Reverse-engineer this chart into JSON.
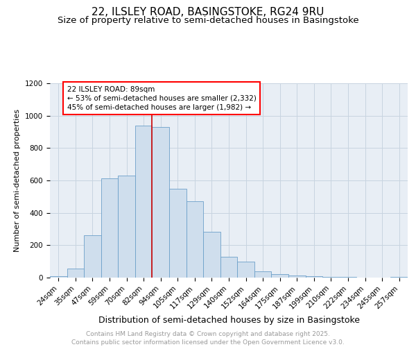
{
  "title1": "22, ILSLEY ROAD, BASINGSTOKE, RG24 9RU",
  "title2": "Size of property relative to semi-detached houses in Basingstoke",
  "xlabel": "Distribution of semi-detached houses by size in Basingstoke",
  "ylabel": "Number of semi-detached properties",
  "bin_labels": [
    "24sqm",
    "35sqm",
    "47sqm",
    "59sqm",
    "70sqm",
    "82sqm",
    "94sqm",
    "105sqm",
    "117sqm",
    "129sqm",
    "140sqm",
    "152sqm",
    "164sqm",
    "175sqm",
    "187sqm",
    "199sqm",
    "210sqm",
    "222sqm",
    "234sqm",
    "245sqm",
    "257sqm"
  ],
  "bar_values": [
    10,
    55,
    260,
    615,
    630,
    940,
    930,
    550,
    470,
    285,
    130,
    100,
    40,
    20,
    15,
    10,
    5,
    3,
    2,
    1,
    5
  ],
  "bar_color": "#cfdeed",
  "bar_edge_color": "#6b9fc9",
  "vline_color": "#cc0000",
  "vline_x_index": 5.5,
  "ylim": [
    0,
    1200
  ],
  "yticks": [
    0,
    200,
    400,
    600,
    800,
    1000,
    1200
  ],
  "grid_color": "#c8d4e0",
  "background_color": "#e8eef5",
  "ann_label": "22 ILSLEY ROAD: 89sqm",
  "ann_line2": "← 53% of semi-detached houses are smaller (2,332)",
  "ann_line3": "45% of semi-detached houses are larger (1,982) →",
  "footer1": "Contains HM Land Registry data © Crown copyright and database right 2025.",
  "footer2": "Contains public sector information licensed under the Open Government Licence v3.0.",
  "footer_color": "#999999",
  "title_fontsize": 11,
  "subtitle_fontsize": 9.5,
  "xlabel_fontsize": 9,
  "ylabel_fontsize": 8,
  "tick_fontsize": 7.5,
  "ann_fontsize": 7.5,
  "footer_fontsize": 6.5
}
